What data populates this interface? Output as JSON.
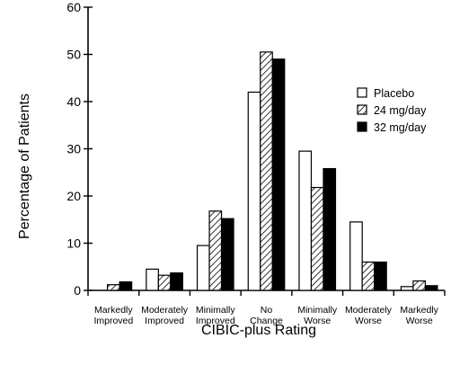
{
  "chart_data": {
    "type": "bar",
    "categories": [
      [
        "Markedly",
        "Improved"
      ],
      [
        "Moderately",
        "Improved"
      ],
      [
        "Minimally",
        "Improved"
      ],
      [
        "No",
        "Change"
      ],
      [
        "Minimally",
        "Worse"
      ],
      [
        "Moderately",
        "Worse"
      ],
      [
        "Markedly",
        "Worse"
      ]
    ],
    "series": [
      {
        "name": "Placebo",
        "fill": "white",
        "values": [
          0,
          4.5,
          9.5,
          42,
          29.5,
          14.5,
          0.8
        ]
      },
      {
        "name": "24 mg/day",
        "fill": "hatch",
        "values": [
          1.2,
          3.2,
          16.8,
          50.5,
          21.8,
          6,
          2
        ]
      },
      {
        "name": "32 mg/day",
        "fill": "black",
        "values": [
          1.8,
          3.7,
          15.2,
          49,
          25.8,
          6,
          1
        ]
      }
    ],
    "title": "",
    "xlabel": "CIBIC-plus Rating",
    "ylabel": "Percentage of Patients",
    "ylim": [
      0,
      60
    ],
    "yticks": [
      0,
      10,
      20,
      30,
      40,
      50,
      60
    ],
    "legend": "right",
    "grid": false
  },
  "colors": {
    "black": "#000000",
    "white": "#ffffff"
  }
}
